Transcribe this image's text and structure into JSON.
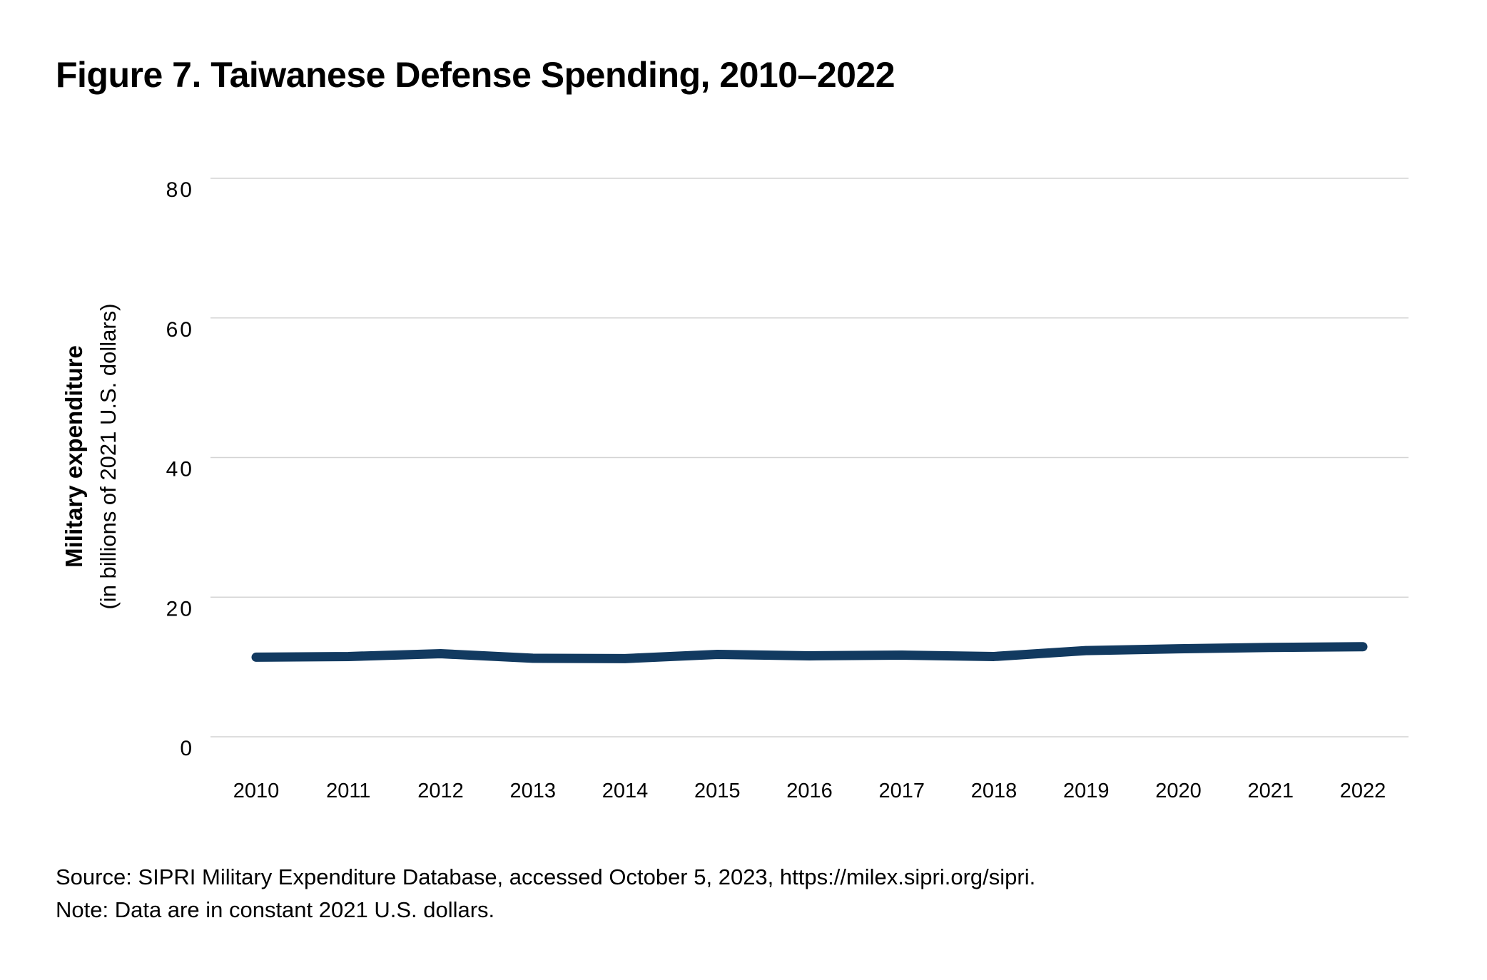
{
  "title": "Figure 7. Taiwanese Defense Spending, 2010–2022",
  "chart_data": {
    "type": "line",
    "title": "Figure 7. Taiwanese Defense Spending, 2010–2022",
    "ylabel": "Military expenditure",
    "ylabel_sub": "(in billions of 2021 U.S. dollars)",
    "xlabel": "",
    "ylim": [
      0,
      80
    ],
    "yticks": [
      "0",
      "20",
      "40",
      "60",
      "80"
    ],
    "grid": "horizontal",
    "x": [
      "2010",
      "2011",
      "2012",
      "2013",
      "2014",
      "2015",
      "2016",
      "2017",
      "2018",
      "2019",
      "2020",
      "2021",
      "2022"
    ],
    "series": [
      {
        "values": [
          11.4,
          11.5,
          11.9,
          11.25,
          11.2,
          11.8,
          11.6,
          11.7,
          11.5,
          12.35,
          12.6,
          12.8,
          12.9
        ],
        "color": "#123a60"
      }
    ]
  },
  "source": "Source: SIPRI Military Expenditure Database, accessed October 5, 2023, https://milex.sipri.org/sipri.",
  "note": "Note: Data are in constant 2021 U.S. dollars."
}
